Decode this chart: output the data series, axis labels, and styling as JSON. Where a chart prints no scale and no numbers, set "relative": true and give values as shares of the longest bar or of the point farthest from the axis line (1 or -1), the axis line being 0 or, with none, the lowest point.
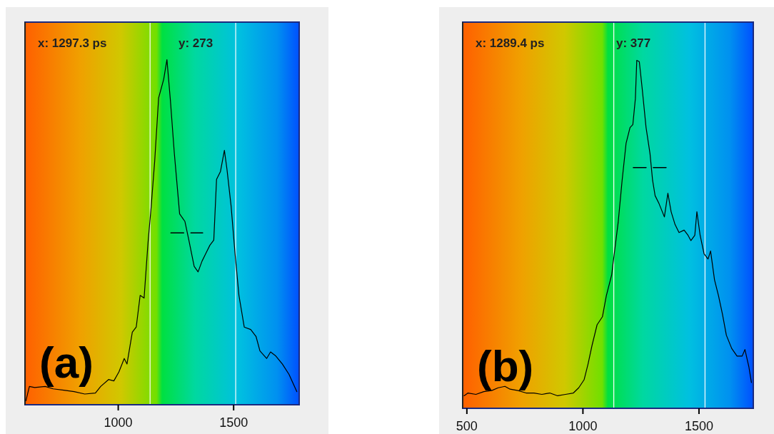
{
  "chart_data": [
    {
      "type": "line",
      "relative": true,
      "xlim": [
        596,
        1784
      ],
      "xticks": [
        1000,
        1500
      ],
      "marker": "none",
      "annotations": [
        "x: 1297.3  ps",
        "y: 273",
        "(a)"
      ],
      "ref_lines": [
        {
          "axis": "x",
          "value": 1138,
          "color": "#ffffff"
        },
        {
          "axis": "x",
          "value": 1509,
          "color": "#ffffff"
        }
      ],
      "series": [
        {
          "color": "#000000",
          "x": [
            600,
            615,
            638,
            684,
            718,
            764,
            809,
            855,
            901,
            924,
            958,
            981,
            1003,
            1026,
            1038,
            1061,
            1078,
            1095,
            1112,
            1129,
            1143,
            1158,
            1175,
            1197,
            1211,
            1226,
            1243,
            1266,
            1289,
            1306,
            1329,
            1346,
            1363,
            1380,
            1397,
            1414,
            1426,
            1443,
            1460,
            1471,
            1489,
            1506,
            1523,
            1546,
            1574,
            1597,
            1614,
            1643,
            1660,
            1683,
            1711,
            1740,
            1774
          ],
          "values": [
            0.011,
            0.053,
            0.05,
            0.053,
            0.046,
            0.042,
            0.038,
            0.031,
            0.034,
            0.053,
            0.073,
            0.069,
            0.095,
            0.134,
            0.118,
            0.21,
            0.225,
            0.317,
            0.309,
            0.469,
            0.576,
            0.706,
            0.889,
            0.943,
            1,
            0.882,
            0.729,
            0.553,
            0.531,
            0.477,
            0.401,
            0.385,
            0.416,
            0.439,
            0.462,
            0.477,
            0.653,
            0.676,
            0.737,
            0.683,
            0.576,
            0.439,
            0.317,
            0.225,
            0.218,
            0.198,
            0.156,
            0.134,
            0.153,
            0.141,
            0.118,
            0.088,
            0.038
          ]
        },
        {
          "type": "line",
          "color": "#000000",
          "line_style": "dashed",
          "x": [
            1228,
            1366
          ],
          "values": [
            0.498,
            0.498
          ]
        }
      ]
    },
    {
      "type": "line",
      "relative": true,
      "xlim": [
        482,
        1734
      ],
      "xticks": [
        500,
        1000,
        1500
      ],
      "marker": "none",
      "annotations": [
        "x: 1289.4  ps",
        "y: 377",
        "(b)"
      ],
      "ref_lines": [
        {
          "axis": "x",
          "value": 1133,
          "color": "#ffffff"
        },
        {
          "axis": "x",
          "value": 1526,
          "color": "#ffffff"
        }
      ],
      "series": [
        {
          "color": "#000000",
          "x": [
            488,
            505,
            539,
            573,
            607,
            635,
            664,
            686,
            720,
            755,
            789,
            823,
            857,
            891,
            925,
            959,
            982,
            1005,
            1022,
            1039,
            1061,
            1084,
            1101,
            1124,
            1135,
            1152,
            1169,
            1186,
            1203,
            1215,
            1226,
            1232,
            1243,
            1255,
            1272,
            1289,
            1300,
            1311,
            1328,
            1351,
            1366,
            1380,
            1397,
            1414,
            1436,
            1453,
            1465,
            1482,
            1491,
            1505,
            1522,
            1539,
            1550,
            1567,
            1584,
            1601,
            1618,
            1641,
            1664,
            1686,
            1698,
            1715,
            1726
          ],
          "values": [
            0.036,
            0.044,
            0.04,
            0.048,
            0.051,
            0.059,
            0.063,
            0.055,
            0.051,
            0.044,
            0.044,
            0.04,
            0.044,
            0.036,
            0.04,
            0.044,
            0.059,
            0.082,
            0.127,
            0.18,
            0.24,
            0.263,
            0.324,
            0.384,
            0.444,
            0.535,
            0.656,
            0.762,
            0.807,
            0.815,
            0.89,
            1,
            0.996,
            0.921,
            0.807,
            0.732,
            0.656,
            0.611,
            0.588,
            0.55,
            0.618,
            0.565,
            0.528,
            0.505,
            0.512,
            0.497,
            0.482,
            0.497,
            0.565,
            0.497,
            0.444,
            0.429,
            0.452,
            0.369,
            0.324,
            0.271,
            0.21,
            0.172,
            0.15,
            0.15,
            0.169,
            0.119,
            0.074
          ]
        },
        {
          "type": "line",
          "color": "#000000",
          "line_style": "dashed",
          "x": [
            1217,
            1364
          ],
          "values": [
            0.692,
            0.692
          ]
        }
      ]
    }
  ]
}
